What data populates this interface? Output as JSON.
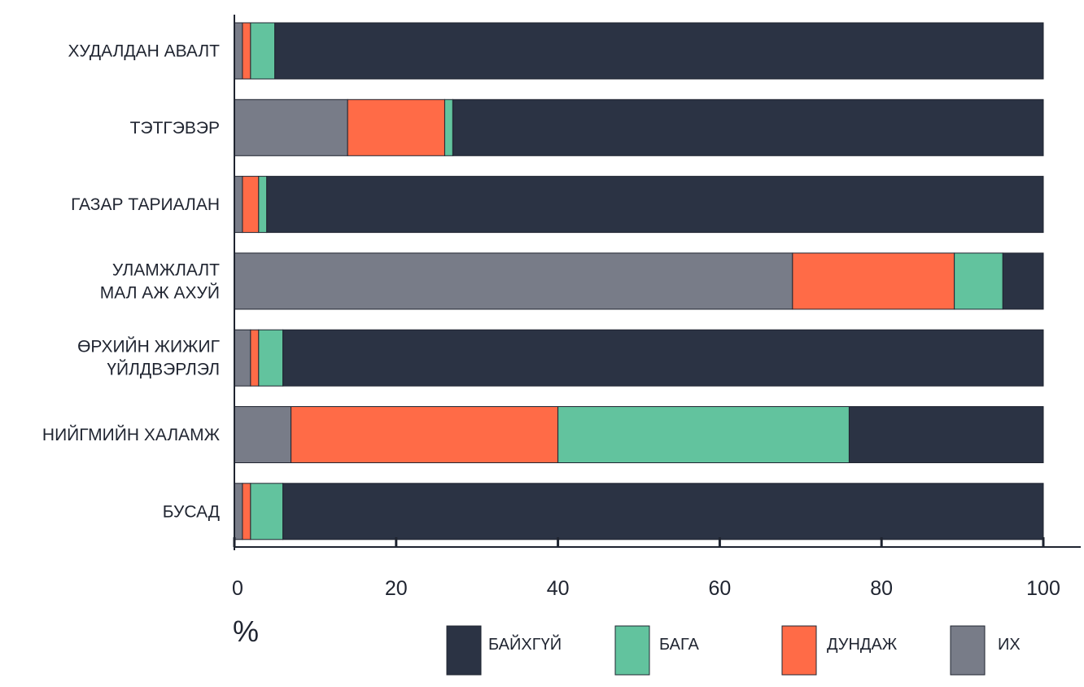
{
  "chart_data": {
    "type": "bar",
    "orientation": "horizontal",
    "stacked": true,
    "categories": [
      [
        "ХУДАЛДАН АВАЛТ"
      ],
      [
        "ТЭТГЭВЭР"
      ],
      [
        "ГАЗАР ТАРИАЛАН"
      ],
      [
        "УЛАМЖЛАЛТ",
        "МАЛ АЖ АХУЙ"
      ],
      [
        "ӨРХИЙН ЖИЖИГ",
        "ҮЙЛДВЭРЛЭЛ"
      ],
      [
        "НИЙГМИЙН ХАЛАМЖ"
      ],
      [
        "БУСАД"
      ]
    ],
    "series": [
      {
        "name": "ИХ",
        "color": "#787c88",
        "values": [
          1,
          14,
          1,
          69,
          2,
          7,
          1
        ]
      },
      {
        "name": "ДУНДАЖ",
        "color": "#ff6b47",
        "values": [
          1,
          12,
          2,
          20,
          1,
          33,
          1
        ]
      },
      {
        "name": "БАГА",
        "color": "#62c39e",
        "values": [
          3,
          1,
          1,
          6,
          3,
          36,
          4
        ]
      },
      {
        "name": "БАЙХГҮЙ",
        "color": "#2b3344",
        "values": [
          95,
          73,
          96,
          5,
          94,
          24,
          94
        ]
      }
    ],
    "legend_order": [
      "БАЙХГҮЙ",
      "БАГА",
      "ДУНДАЖ",
      "ИХ"
    ],
    "xlim": [
      0,
      100
    ],
    "xticks": [
      0,
      20,
      40,
      60,
      80,
      100
    ],
    "xlabel": "%",
    "ylabel": "",
    "title": "",
    "grid": false,
    "legend_position": "bottom-right"
  }
}
